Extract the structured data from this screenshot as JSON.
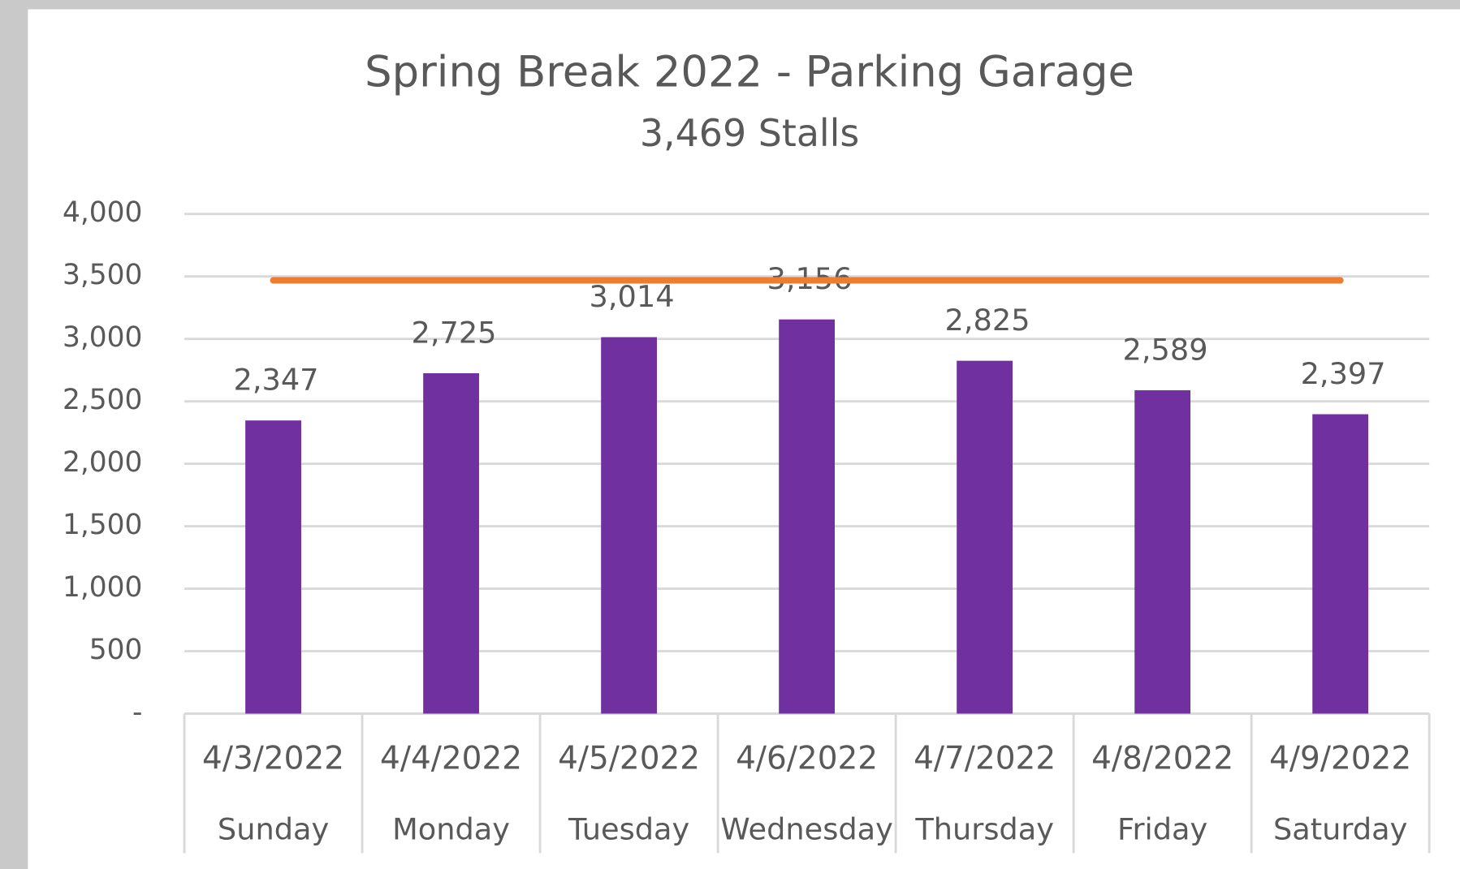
{
  "chart_data": {
    "type": "bar",
    "title": "Spring Break 2022 - Parking Garage",
    "subtitle": "3,469 Stalls",
    "categories": [
      "4/3/2022",
      "4/4/2022",
      "4/5/2022",
      "4/6/2022",
      "4/7/2022",
      "4/8/2022",
      "4/9/2022"
    ],
    "weekdays": [
      "Sunday",
      "Monday",
      "Tuesday",
      "Wednesday",
      "Thursday",
      "Friday",
      "Saturday"
    ],
    "series": [
      {
        "type": "bar",
        "color": "#7030a0",
        "values": [
          2347,
          2725,
          3014,
          3156,
          2825,
          2589,
          2397
        ],
        "value_labels": [
          "2,347",
          "2,725",
          "3,014",
          "3,156",
          "2,825",
          "2,589",
          "2,397"
        ]
      },
      {
        "type": "line",
        "color": "#ed7d31",
        "values": [
          3469,
          3469,
          3469,
          3469,
          3469,
          3469,
          3469
        ]
      }
    ],
    "ylim": [
      0,
      4000
    ],
    "yticks": [
      {
        "value": 0,
        "label": "-"
      },
      500,
      {
        "value": 1000,
        "label": "1,000"
      },
      {
        "value": 1500,
        "label": "1,500"
      },
      {
        "value": 2000,
        "label": "2,000"
      },
      {
        "value": 2500,
        "label": "2,500"
      },
      {
        "value": 3000,
        "label": "3,000"
      },
      {
        "value": 3500,
        "label": "3,500"
      },
      {
        "value": 4000,
        "label": "4,000"
      }
    ],
    "grid": true
  }
}
